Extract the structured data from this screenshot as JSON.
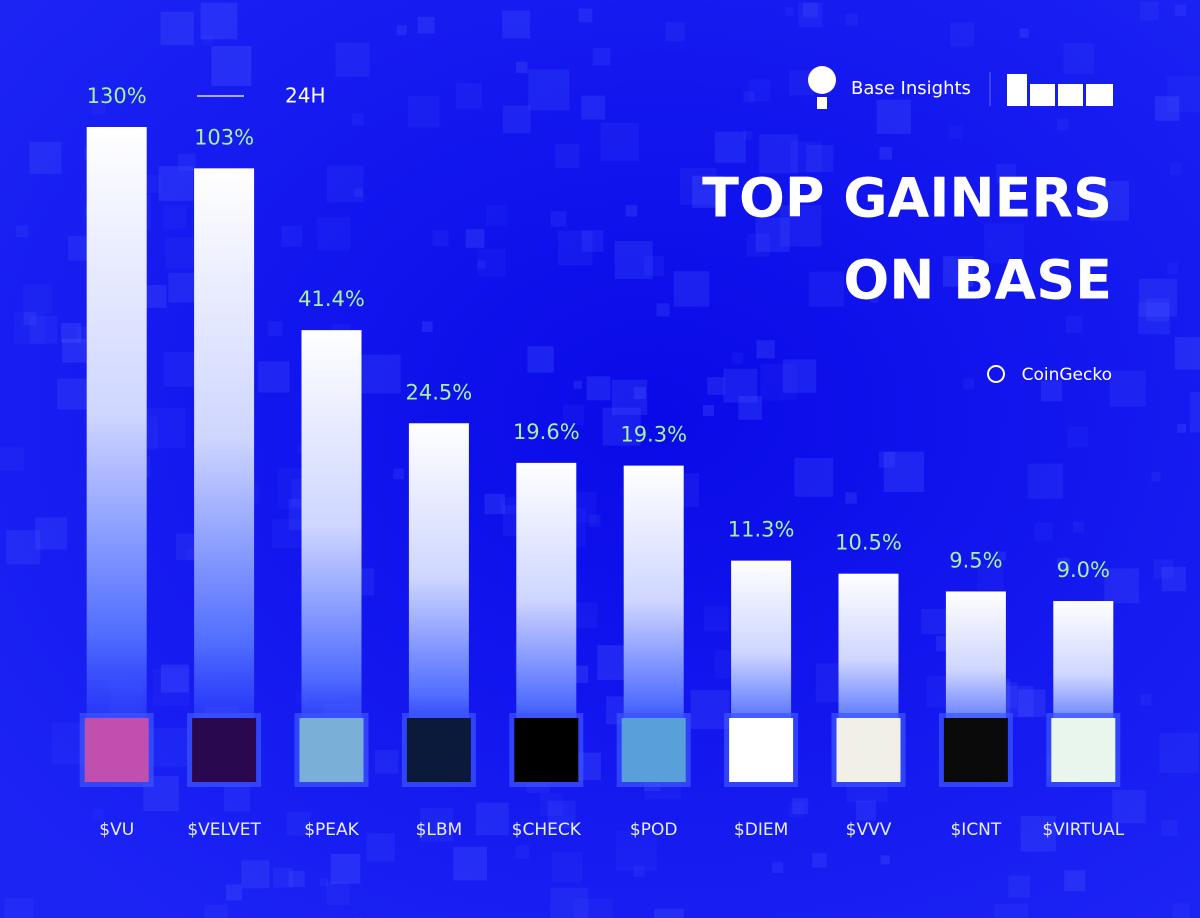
{
  "chart_data": {
    "type": "bar",
    "title": [
      "TOP GAINERS",
      "ON BASE"
    ],
    "brand": "Base Insights",
    "source": "CoinGecko",
    "categories": [
      "$VU",
      "$VELVET",
      "$PEAK",
      "$LBM",
      "$CHECK",
      "$POD",
      "$DIEM",
      "$VVV",
      "$ICNT",
      "$VIRTUAL"
    ],
    "series": [
      {
        "name": "24H",
        "color": "#ffffff",
        "values": [
          130,
          103,
          41.4,
          24.5,
          19.6,
          19.3,
          11.3,
          10.5,
          9.5,
          9.0
        ],
        "value_labels": [
          "130%",
          "103%",
          "41.4%",
          "24.5%",
          "19.6%",
          "19.3%",
          "11.3%",
          "10.5%",
          "9.5%",
          "9.0%"
        ]
      }
    ],
    "log_scale": true,
    "ylim": [
      4,
      130
    ]
  }
}
